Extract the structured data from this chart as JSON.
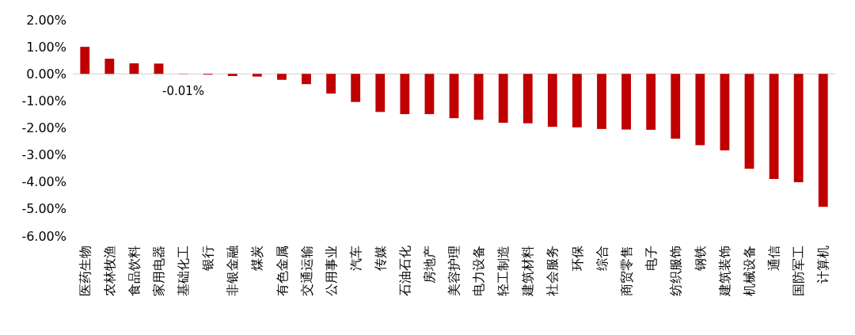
{
  "chart_data": {
    "type": "bar",
    "categories": [
      "医药生物",
      "农林牧渔",
      "食品饮料",
      "家用电器",
      "基础化工",
      "银行",
      "非银金融",
      "煤炭",
      "有色金属",
      "交通运输",
      "公用事业",
      "汽车",
      "传媒",
      "石油石化",
      "房地产",
      "美容护理",
      "电力设备",
      "轻工制造",
      "建筑材料",
      "社会服务",
      "环保",
      "综合",
      "商贸零售",
      "电子",
      "纺织服饰",
      "钢铁",
      "建筑装饰",
      "机械设备",
      "通信",
      "国防军工",
      "计算机"
    ],
    "values": [
      1.0,
      0.56,
      0.39,
      0.38,
      -0.01,
      -0.03,
      -0.08,
      -0.1,
      -0.22,
      -0.38,
      -0.73,
      -1.04,
      -1.41,
      -1.49,
      -1.49,
      -1.64,
      -1.7,
      -1.81,
      -1.83,
      -1.96,
      -1.98,
      -2.04,
      -2.06,
      -2.07,
      -2.4,
      -2.64,
      -2.83,
      -3.51,
      -3.89,
      -4.01,
      -4.92
    ],
    "value_labels": [
      null,
      null,
      null,
      null,
      "-0.01%",
      null,
      null,
      null,
      null,
      null,
      null,
      null,
      null,
      null,
      null,
      null,
      null,
      null,
      null,
      null,
      null,
      null,
      null,
      null,
      null,
      null,
      null,
      null,
      null,
      null,
      null
    ],
    "color": "#c00000",
    "ylim": [
      -6,
      2
    ],
    "tick_labels": "xy",
    "yticks": [
      {
        "value": 2,
        "label": "2.00%"
      },
      {
        "value": 1,
        "label": "1.00%"
      },
      {
        "value": 0,
        "label": "0.00%"
      },
      {
        "value": -1,
        "label": "-1.00%"
      },
      {
        "value": -2,
        "label": "-2.00%"
      },
      {
        "value": -3,
        "label": "-3.00%"
      },
      {
        "value": -4,
        "label": "-4.00%"
      },
      {
        "value": -5,
        "label": "-5.00%"
      },
      {
        "value": -6,
        "label": "-6.00%"
      }
    ]
  }
}
